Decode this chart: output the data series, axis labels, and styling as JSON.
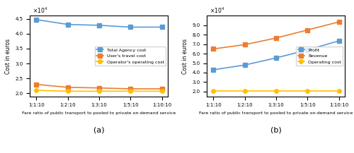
{
  "x_labels": [
    "1:1:10",
    "1:2:10",
    "1:3:10",
    "1:5:10",
    "1:10:10"
  ],
  "x_vals": [
    0,
    1,
    2,
    3,
    4
  ],
  "a_total_agency": [
    44700,
    43100,
    42800,
    42200,
    42200
  ],
  "a_user_travel": [
    23000,
    22000,
    21800,
    21500,
    21500
  ],
  "a_operator_op": [
    21000,
    20700,
    20700,
    20700,
    20700
  ],
  "b_profit": [
    43000,
    48000,
    55500,
    64000,
    73500
  ],
  "b_revenue": [
    65000,
    69500,
    76500,
    85000,
    93500
  ],
  "b_operating": [
    20500,
    20500,
    20500,
    20500,
    20500
  ],
  "color_blue": "#5b9bd5",
  "color_orange": "#ed7d31",
  "color_yellow": "#ffc000",
  "ylabel": "Cost in euros",
  "xlabel": "Fare ratio of public transport to pooled to private on-demand service",
  "legend_a": [
    "Total Agency cost",
    "User's travel cost",
    "Operator's operating cost"
  ],
  "legend_b": [
    "Profit",
    "Revenue",
    "Operating cost"
  ],
  "label_a": "(a)",
  "label_b": "(b)"
}
